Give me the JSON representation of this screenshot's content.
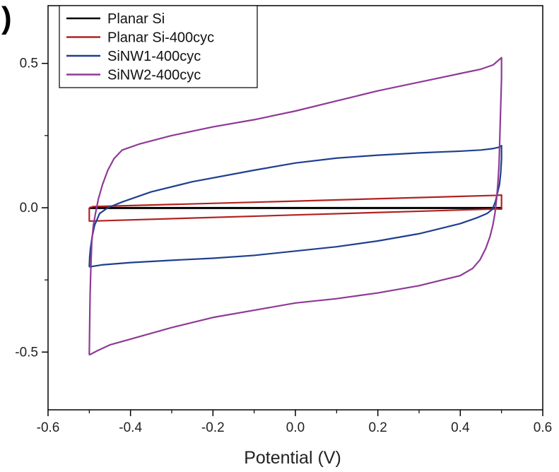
{
  "chart_data": {
    "type": "line",
    "panel_label": ")",
    "xlabel": "Potential (V)",
    "ylabel": "",
    "xlim": [
      -0.6,
      0.6
    ],
    "ylim": [
      -0.7,
      0.7
    ],
    "x_ticks": [
      "-0.6",
      "-0.4",
      "-0.2",
      "0.0",
      "0.2",
      "0.4",
      "0.6"
    ],
    "y_ticks": [
      "-0.5",
      "0.0",
      "0.5"
    ],
    "legend_position": "top-left",
    "grid": false,
    "series": [
      {
        "name": "Planar Si",
        "color": "#000000",
        "points": [
          [
            -0.5,
            0.0
          ],
          [
            0.5,
            0.0
          ],
          [
            0.5,
            -0.002
          ],
          [
            -0.5,
            -0.002
          ],
          [
            -0.5,
            0.0
          ]
        ]
      },
      {
        "name": "Planar Si-400cyc",
        "color": "#b22222",
        "points": [
          [
            -0.5,
            0.0
          ],
          [
            -0.49,
            0.004
          ],
          [
            0.0,
            0.023
          ],
          [
            0.49,
            0.043
          ],
          [
            0.5,
            0.044
          ],
          [
            0.5,
            -0.005
          ],
          [
            0.49,
            -0.004
          ],
          [
            0.0,
            -0.025
          ],
          [
            -0.49,
            -0.046
          ],
          [
            -0.5,
            -0.046
          ],
          [
            -0.5,
            0.0
          ]
        ]
      },
      {
        "name": "SiNW1-400cyc",
        "color": "#1f3f8f",
        "points": [
          [
            -0.5,
            -0.205
          ],
          [
            -0.499,
            -0.17
          ],
          [
            -0.497,
            -0.14
          ],
          [
            -0.493,
            -0.1
          ],
          [
            -0.487,
            -0.06
          ],
          [
            -0.475,
            -0.02
          ],
          [
            -0.455,
            0.0
          ],
          [
            -0.42,
            0.02
          ],
          [
            -0.35,
            0.055
          ],
          [
            -0.25,
            0.09
          ],
          [
            -0.1,
            0.13
          ],
          [
            0.0,
            0.155
          ],
          [
            0.1,
            0.172
          ],
          [
            0.2,
            0.182
          ],
          [
            0.3,
            0.19
          ],
          [
            0.4,
            0.196
          ],
          [
            0.45,
            0.2
          ],
          [
            0.48,
            0.205
          ],
          [
            0.495,
            0.21
          ],
          [
            0.5,
            0.215
          ],
          [
            0.5,
            0.17
          ],
          [
            0.498,
            0.12
          ],
          [
            0.495,
            0.08
          ],
          [
            0.49,
            0.05
          ],
          [
            0.485,
            0.02
          ],
          [
            0.478,
            -0.005
          ],
          [
            0.465,
            -0.02
          ],
          [
            0.44,
            -0.035
          ],
          [
            0.4,
            -0.055
          ],
          [
            0.3,
            -0.09
          ],
          [
            0.2,
            -0.115
          ],
          [
            0.1,
            -0.135
          ],
          [
            0.0,
            -0.15
          ],
          [
            -0.1,
            -0.165
          ],
          [
            -0.2,
            -0.175
          ],
          [
            -0.3,
            -0.182
          ],
          [
            -0.4,
            -0.19
          ],
          [
            -0.47,
            -0.198
          ],
          [
            -0.5,
            -0.205
          ]
        ]
      },
      {
        "name": "SiNW2-400cyc",
        "color": "#8e3a96",
        "points": [
          [
            -0.5,
            -0.51
          ],
          [
            -0.499,
            -0.4
          ],
          [
            -0.498,
            -0.3
          ],
          [
            -0.496,
            -0.2
          ],
          [
            -0.494,
            -0.12
          ],
          [
            -0.49,
            -0.06
          ],
          [
            -0.485,
            -0.02
          ],
          [
            -0.478,
            0.03
          ],
          [
            -0.468,
            0.08
          ],
          [
            -0.455,
            0.13
          ],
          [
            -0.44,
            0.17
          ],
          [
            -0.42,
            0.2
          ],
          [
            -0.38,
            0.22
          ],
          [
            -0.3,
            0.25
          ],
          [
            -0.2,
            0.28
          ],
          [
            -0.1,
            0.305
          ],
          [
            0.0,
            0.335
          ],
          [
            0.1,
            0.37
          ],
          [
            0.2,
            0.405
          ],
          [
            0.3,
            0.435
          ],
          [
            0.4,
            0.465
          ],
          [
            0.45,
            0.48
          ],
          [
            0.48,
            0.495
          ],
          [
            0.5,
            0.52
          ],
          [
            0.5,
            0.45
          ],
          [
            0.498,
            0.35
          ],
          [
            0.496,
            0.25
          ],
          [
            0.494,
            0.15
          ],
          [
            0.491,
            0.08
          ],
          [
            0.488,
            0.03
          ],
          [
            0.484,
            -0.02
          ],
          [
            0.479,
            -0.06
          ],
          [
            0.472,
            -0.1
          ],
          [
            0.462,
            -0.14
          ],
          [
            0.448,
            -0.18
          ],
          [
            0.43,
            -0.21
          ],
          [
            0.4,
            -0.235
          ],
          [
            0.3,
            -0.27
          ],
          [
            0.2,
            -0.295
          ],
          [
            0.1,
            -0.315
          ],
          [
            0.0,
            -0.33
          ],
          [
            -0.1,
            -0.355
          ],
          [
            -0.2,
            -0.38
          ],
          [
            -0.3,
            -0.415
          ],
          [
            -0.4,
            -0.455
          ],
          [
            -0.45,
            -0.475
          ],
          [
            -0.48,
            -0.495
          ],
          [
            -0.5,
            -0.51
          ]
        ]
      }
    ]
  }
}
